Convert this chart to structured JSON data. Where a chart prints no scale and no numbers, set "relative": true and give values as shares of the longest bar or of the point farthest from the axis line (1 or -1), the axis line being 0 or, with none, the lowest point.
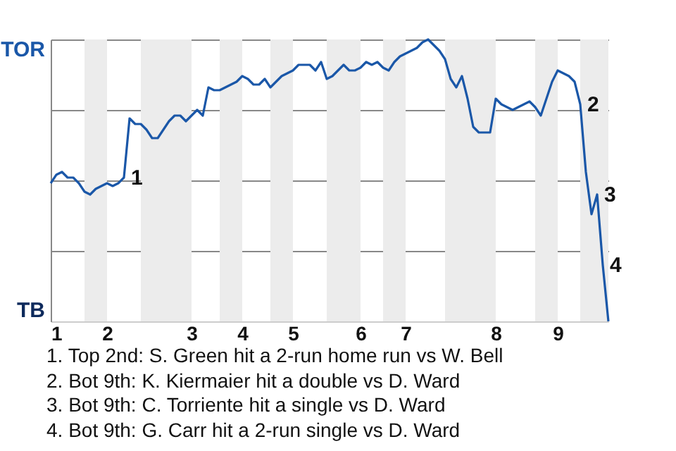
{
  "chart_data": {
    "type": "line",
    "relative": true,
    "categories": [
      "1",
      null,
      null,
      null,
      null,
      null,
      null,
      null,
      null,
      null,
      "2",
      null,
      null,
      null,
      null,
      null,
      null,
      null,
      null,
      null,
      null,
      null,
      null,
      null,
      null,
      "3",
      null,
      null,
      null,
      null,
      null,
      null,
      null,
      null,
      "4",
      null,
      null,
      null,
      null,
      null,
      null,
      null,
      null,
      "5",
      null,
      null,
      null,
      null,
      null,
      null,
      null,
      null,
      null,
      null,
      null,
      "6",
      null,
      null,
      null,
      null,
      null,
      null,
      null,
      "7",
      null,
      null,
      null,
      null,
      null,
      null,
      null,
      null,
      null,
      null,
      null,
      null,
      null,
      null,
      null,
      "8",
      null,
      null,
      null,
      null,
      null,
      null,
      null,
      null,
      null,
      null,
      "9",
      null,
      null,
      null,
      null,
      null,
      null,
      null,
      null,
      null
    ],
    "series": [
      {
        "color": "#1a57a8",
        "values": [
          0.49,
          0.52,
          0.53,
          0.51,
          0.51,
          0.49,
          0.46,
          0.45,
          0.47,
          0.48,
          0.49,
          0.48,
          0.49,
          0.51,
          0.72,
          0.7,
          0.7,
          0.68,
          0.65,
          0.65,
          0.68,
          0.71,
          0.73,
          0.73,
          0.71,
          0.73,
          0.75,
          0.73,
          0.83,
          0.82,
          0.82,
          0.83,
          0.84,
          0.85,
          0.87,
          0.86,
          0.84,
          0.84,
          0.86,
          0.83,
          0.85,
          0.87,
          0.88,
          0.89,
          0.91,
          0.91,
          0.91,
          0.89,
          0.92,
          0.86,
          0.87,
          0.89,
          0.91,
          0.89,
          0.89,
          0.9,
          0.92,
          0.91,
          0.92,
          0.9,
          0.89,
          0.92,
          0.94,
          0.95,
          0.96,
          0.97,
          0.99,
          1,
          0.98,
          0.96,
          0.93,
          0.86,
          0.83,
          0.87,
          0.79,
          0.69,
          0.67,
          0.67,
          0.67,
          0.79,
          0.77,
          0.76,
          0.75,
          0.76,
          0.77,
          0.78,
          0.76,
          0.73,
          0.79,
          0.85,
          0.89,
          0.88,
          0.87,
          0.85,
          0.77,
          0.53,
          0.38,
          0.45,
          0.2,
          0
        ],
        "name": null
      }
    ],
    "grid": "y",
    "annotations": [
      "TOR",
      "TB",
      "1",
      "2",
      "3",
      "4",
      "1. Top 2nd: S. Green hit a 2-run home run vs W. Bell",
      "2. Bot 9th: K. Kiermaier hit a double vs D. Ward",
      "3. Bot 9th: C. Torriente hit a single vs D. Ward",
      "4. Bot 9th: G. Carr hit a 2-run single vs D. Ward"
    ]
  }
}
